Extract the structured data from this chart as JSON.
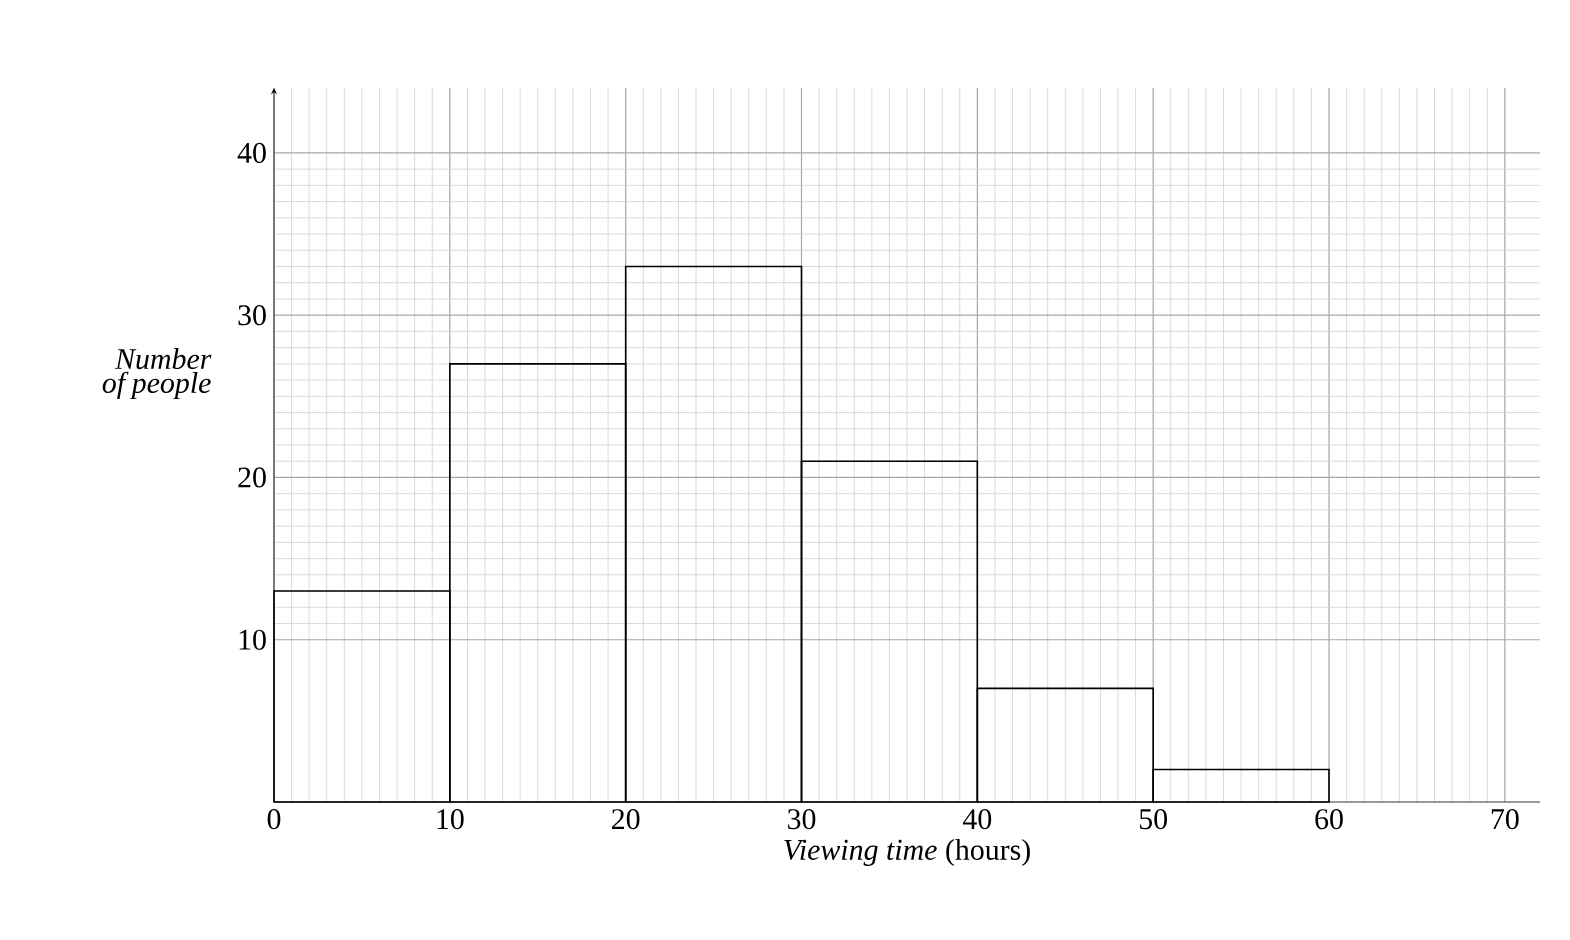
{
  "chart_data": {
    "type": "histogram",
    "xlabel": "*Viewing time* (hours)",
    "ylabel": "Number of people",
    "bins": [
      0,
      10,
      20,
      30,
      40,
      50,
      60
    ],
    "values": [
      13,
      27,
      33,
      21,
      7,
      2
    ],
    "color": "#000000",
    "xlim": [
      0,
      72
    ],
    "ylim": [
      0,
      44
    ],
    "xticks": [
      0,
      10,
      20,
      30,
      40,
      50,
      60,
      70
    ],
    "yticks": [
      10,
      20,
      30,
      40
    ],
    "grid": true
  }
}
